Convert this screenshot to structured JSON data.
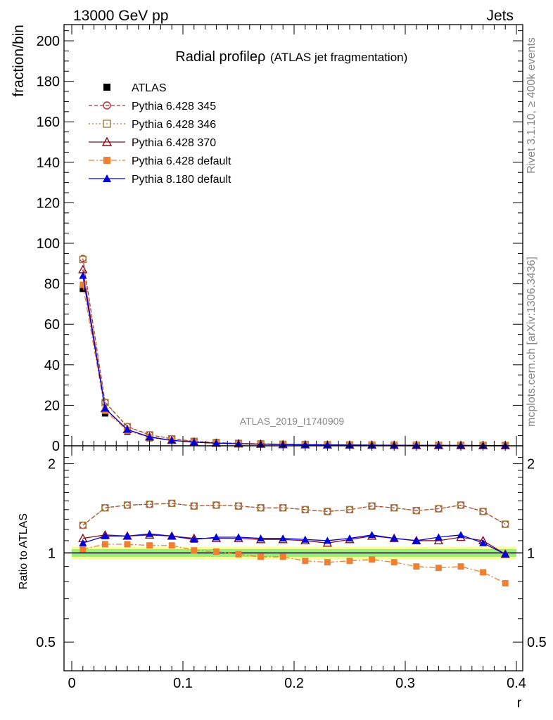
{
  "header": {
    "left": "13000 GeV pp",
    "right": "Jets"
  },
  "side": {
    "rivet": "Rivet 3.1.10, ≥ 400k events",
    "mcplots": "mcplots.cern.ch [arXiv:1306.3436]"
  },
  "chart_data": [
    {
      "type": "line",
      "title": "Radial profile",
      "title_symbol": "ρ",
      "subtitle": "(ATLAS jet fragmentation)",
      "analysis_label": "ATLAS_2019_I1740909",
      "ylabel": "fraction/bin",
      "xlim": [
        0,
        0.4
      ],
      "ylim": [
        0,
        208
      ],
      "yticks": [
        0,
        20,
        40,
        60,
        80,
        100,
        120,
        140,
        160,
        180,
        200
      ],
      "x": [
        0.01,
        0.03,
        0.05,
        0.07,
        0.09,
        0.11,
        0.13,
        0.15,
        0.17,
        0.19,
        0.21,
        0.23,
        0.25,
        0.27,
        0.29,
        0.31,
        0.33,
        0.35,
        0.37,
        0.39
      ],
      "legend_position": "top-left",
      "series": [
        {
          "name": "ATLAS",
          "color": "#000000",
          "marker": "filled-square",
          "values": [
            77.5,
            16.0,
            7.0,
            3.8,
            2.4,
            1.6,
            1.2,
            0.9,
            0.7,
            0.55,
            0.45,
            0.38,
            0.32,
            0.27,
            0.23,
            0.2,
            0.17,
            0.15,
            0.13,
            0.11
          ]
        },
        {
          "name": "Pythia 6.428 345",
          "color": "#b03030",
          "marker": "open-circle",
          "values": [
            92.5,
            21.5,
            9.5,
            5.4,
            3.5,
            2.2,
            1.6,
            1.2,
            0.95,
            0.75,
            0.6,
            0.5,
            0.44,
            0.37,
            0.31,
            0.26,
            0.23,
            0.2,
            0.17,
            0.14
          ]
        },
        {
          "name": "Pythia 6.428 346",
          "color": "#a08040",
          "marker": "open-square",
          "values": [
            92.0,
            21.3,
            9.4,
            5.4,
            3.4,
            2.2,
            1.6,
            1.2,
            0.95,
            0.75,
            0.6,
            0.5,
            0.44,
            0.37,
            0.31,
            0.26,
            0.23,
            0.2,
            0.17,
            0.14
          ]
        },
        {
          "name": "Pythia 6.428 370",
          "color": "#8b0a1a",
          "marker": "open-triangle",
          "values": [
            87.0,
            18.4,
            8.0,
            4.4,
            2.7,
            1.8,
            1.3,
            1.0,
            0.8,
            0.6,
            0.5,
            0.42,
            0.36,
            0.31,
            0.26,
            0.22,
            0.19,
            0.17,
            0.14,
            0.11
          ]
        },
        {
          "name": "Pythia 6.428 default",
          "color": "#f08030",
          "marker": "filled-square",
          "values": [
            79.5,
            17.3,
            7.5,
            4.1,
            2.5,
            1.7,
            1.2,
            0.9,
            0.7,
            0.55,
            0.44,
            0.36,
            0.31,
            0.26,
            0.22,
            0.19,
            0.16,
            0.14,
            0.12,
            0.1
          ]
        },
        {
          "name": "Pythia 8.180 default",
          "color": "#0000dd",
          "marker": "filled-triangle",
          "values": [
            84.0,
            18.4,
            8.0,
            4.3,
            2.7,
            1.8,
            1.3,
            1.0,
            0.8,
            0.6,
            0.5,
            0.42,
            0.36,
            0.31,
            0.26,
            0.22,
            0.19,
            0.17,
            0.14,
            0.11
          ]
        }
      ]
    },
    {
      "type": "line",
      "ylabel": "Ratio to ATLAS",
      "xlabel": "r",
      "xlim": [
        0,
        0.4
      ],
      "ylim": [
        0.4,
        2.3
      ],
      "yscale": "log",
      "yticks": [
        0.5,
        1,
        2
      ],
      "ytick_labels": [
        "0.5",
        "1",
        "2"
      ],
      "xticks": [
        0,
        0.1,
        0.2,
        0.3,
        0.4
      ],
      "xtick_labels": [
        "0",
        "0.1",
        "0.2",
        "0.3",
        "0.4"
      ],
      "x": [
        0.01,
        0.03,
        0.05,
        0.07,
        0.09,
        0.11,
        0.13,
        0.15,
        0.17,
        0.19,
        0.21,
        0.23,
        0.25,
        0.27,
        0.29,
        0.31,
        0.33,
        0.35,
        0.37,
        0.39
      ],
      "reference_band": {
        "inner": [
          0.97,
          1.03
        ],
        "outer": [
          0.95,
          1.05
        ]
      },
      "series": [
        {
          "name": "Pythia 6.428 345",
          "color": "#b03030",
          "marker": "open-circle",
          "values": [
            1.24,
            1.42,
            1.45,
            1.46,
            1.47,
            1.44,
            1.45,
            1.44,
            1.42,
            1.42,
            1.4,
            1.38,
            1.4,
            1.44,
            1.42,
            1.39,
            1.41,
            1.45,
            1.38,
            1.25
          ]
        },
        {
          "name": "Pythia 6.428 346",
          "color": "#a08040",
          "marker": "open-square",
          "values": [
            1.24,
            1.42,
            1.45,
            1.46,
            1.47,
            1.44,
            1.45,
            1.44,
            1.42,
            1.42,
            1.4,
            1.38,
            1.4,
            1.44,
            1.42,
            1.39,
            1.41,
            1.45,
            1.38,
            1.25
          ]
        },
        {
          "name": "Pythia 6.428 370",
          "color": "#8b0a1a",
          "marker": "open-triangle",
          "values": [
            1.12,
            1.15,
            1.14,
            1.15,
            1.14,
            1.12,
            1.12,
            1.12,
            1.11,
            1.11,
            1.1,
            1.08,
            1.11,
            1.14,
            1.12,
            1.1,
            1.1,
            1.13,
            1.1,
            0.99
          ]
        },
        {
          "name": "Pythia 6.428 default",
          "color": "#f08030",
          "marker": "filled-square",
          "values": [
            1.03,
            1.07,
            1.07,
            1.06,
            1.06,
            1.02,
            1.01,
            0.99,
            0.97,
            0.97,
            0.94,
            0.93,
            0.94,
            0.95,
            0.93,
            0.9,
            0.89,
            0.9,
            0.86,
            0.79
          ]
        },
        {
          "name": "Pythia 8.180 default",
          "color": "#0000dd",
          "marker": "filled-triangle",
          "values": [
            1.08,
            1.14,
            1.14,
            1.16,
            1.14,
            1.11,
            1.13,
            1.13,
            1.12,
            1.12,
            1.11,
            1.1,
            1.12,
            1.15,
            1.12,
            1.1,
            1.13,
            1.15,
            1.08,
            0.99
          ]
        }
      ]
    }
  ]
}
